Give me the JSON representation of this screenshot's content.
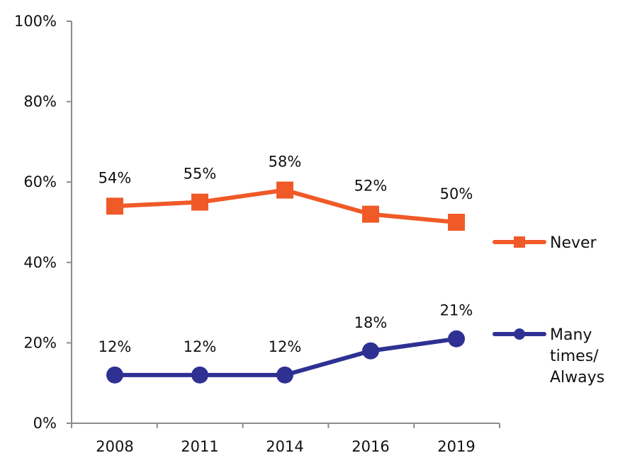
{
  "chart_data": {
    "type": "line",
    "title": "",
    "xlabel": "",
    "ylabel": "",
    "categories": [
      "2008",
      "2011",
      "2014",
      "2016",
      "2019"
    ],
    "ylim": [
      0,
      100
    ],
    "y_ticks": [
      0,
      20,
      40,
      60,
      80,
      100
    ],
    "y_tick_labels": [
      "0%",
      "20%",
      "40%",
      "60%",
      "80%",
      "100%"
    ],
    "grid": false,
    "legend_position": "right",
    "series": [
      {
        "name": "Never",
        "values": [
          54,
          55,
          58,
          52,
          50
        ],
        "data_labels": [
          "54%",
          "55%",
          "58%",
          "52%",
          "50%"
        ],
        "color": "#f05a28",
        "marker": "square",
        "legend_lines": [
          "Never"
        ]
      },
      {
        "name": "Many times/ Always",
        "values": [
          12,
          12,
          12,
          18,
          21
        ],
        "data_labels": [
          "12%",
          "12%",
          "12%",
          "18%",
          "21%"
        ],
        "color": "#2e3192",
        "marker": "circle",
        "legend_lines": [
          "Many",
          "times/",
          "Always"
        ]
      }
    ]
  }
}
